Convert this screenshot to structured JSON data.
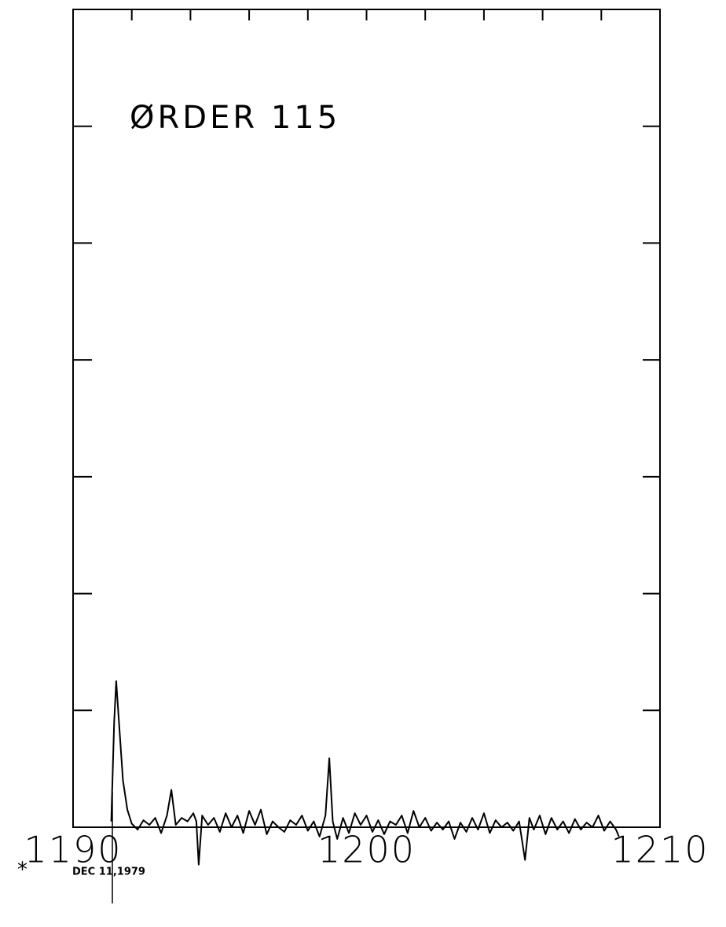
{
  "chart_data": {
    "type": "line",
    "title": "ØRDER 115",
    "annotation": "DEC 11,1979",
    "x": [
      1191.3,
      1191.4,
      1191.47,
      1191.55,
      1191.7,
      1191.85,
      1192.0,
      1192.2,
      1192.4,
      1192.6,
      1192.8,
      1193.0,
      1193.2,
      1193.35,
      1193.5,
      1193.7,
      1193.9,
      1194.1,
      1194.2,
      1194.28,
      1194.4,
      1194.6,
      1194.8,
      1195.0,
      1195.2,
      1195.4,
      1195.6,
      1195.8,
      1196.0,
      1196.2,
      1196.4,
      1196.6,
      1196.8,
      1197.0,
      1197.2,
      1197.4,
      1197.6,
      1197.8,
      1198.0,
      1198.2,
      1198.4,
      1198.6,
      1198.73,
      1198.85,
      1199.0,
      1199.2,
      1199.4,
      1199.6,
      1199.8,
      1200.0,
      1200.2,
      1200.4,
      1200.6,
      1200.8,
      1201.0,
      1201.2,
      1201.4,
      1201.6,
      1201.8,
      1202.0,
      1202.2,
      1202.4,
      1202.6,
      1202.8,
      1203.0,
      1203.2,
      1203.4,
      1203.6,
      1203.8,
      1204.0,
      1204.2,
      1204.4,
      1204.6,
      1204.8,
      1205.0,
      1205.2,
      1205.4,
      1205.55,
      1205.7,
      1205.9,
      1206.1,
      1206.3,
      1206.5,
      1206.7,
      1206.9,
      1207.1,
      1207.3,
      1207.5,
      1207.7,
      1207.9,
      1208.1,
      1208.3,
      1208.5,
      1208.6
    ],
    "values": [
      0.05,
      0.9,
      1.25,
      0.95,
      0.4,
      0.15,
      0.03,
      -0.02,
      0.06,
      0.02,
      0.08,
      -0.05,
      0.1,
      0.32,
      0.02,
      0.08,
      0.05,
      0.12,
      0.05,
      -0.32,
      0.1,
      0.02,
      0.08,
      -0.04,
      0.12,
      0.0,
      0.1,
      -0.05,
      0.14,
      0.02,
      0.15,
      -0.06,
      0.05,
      0.0,
      -0.04,
      0.06,
      0.02,
      0.1,
      -0.03,
      0.05,
      -0.08,
      0.1,
      0.59,
      0.05,
      -0.1,
      0.08,
      -0.05,
      0.12,
      0.02,
      0.1,
      -0.04,
      0.06,
      -0.06,
      0.05,
      0.02,
      0.1,
      -0.05,
      0.14,
      0.0,
      0.08,
      -0.03,
      0.04,
      -0.02,
      0.05,
      -0.1,
      0.04,
      -0.04,
      0.08,
      -0.02,
      0.12,
      -0.05,
      0.06,
      0.0,
      0.04,
      -0.03,
      0.05,
      -0.28,
      0.08,
      -0.02,
      0.1,
      -0.06,
      0.08,
      -0.02,
      0.05,
      -0.05,
      0.07,
      -0.02,
      0.04,
      0.0,
      0.1,
      -0.03,
      0.05,
      -0.02,
      -0.08
    ],
    "color": "#000000",
    "xlim": [
      1190,
      1210
    ],
    "xticks": [
      1190,
      1200,
      1210
    ],
    "ylim": [
      0,
      7
    ],
    "yticks": [
      1,
      2,
      3,
      4,
      5,
      6
    ]
  }
}
